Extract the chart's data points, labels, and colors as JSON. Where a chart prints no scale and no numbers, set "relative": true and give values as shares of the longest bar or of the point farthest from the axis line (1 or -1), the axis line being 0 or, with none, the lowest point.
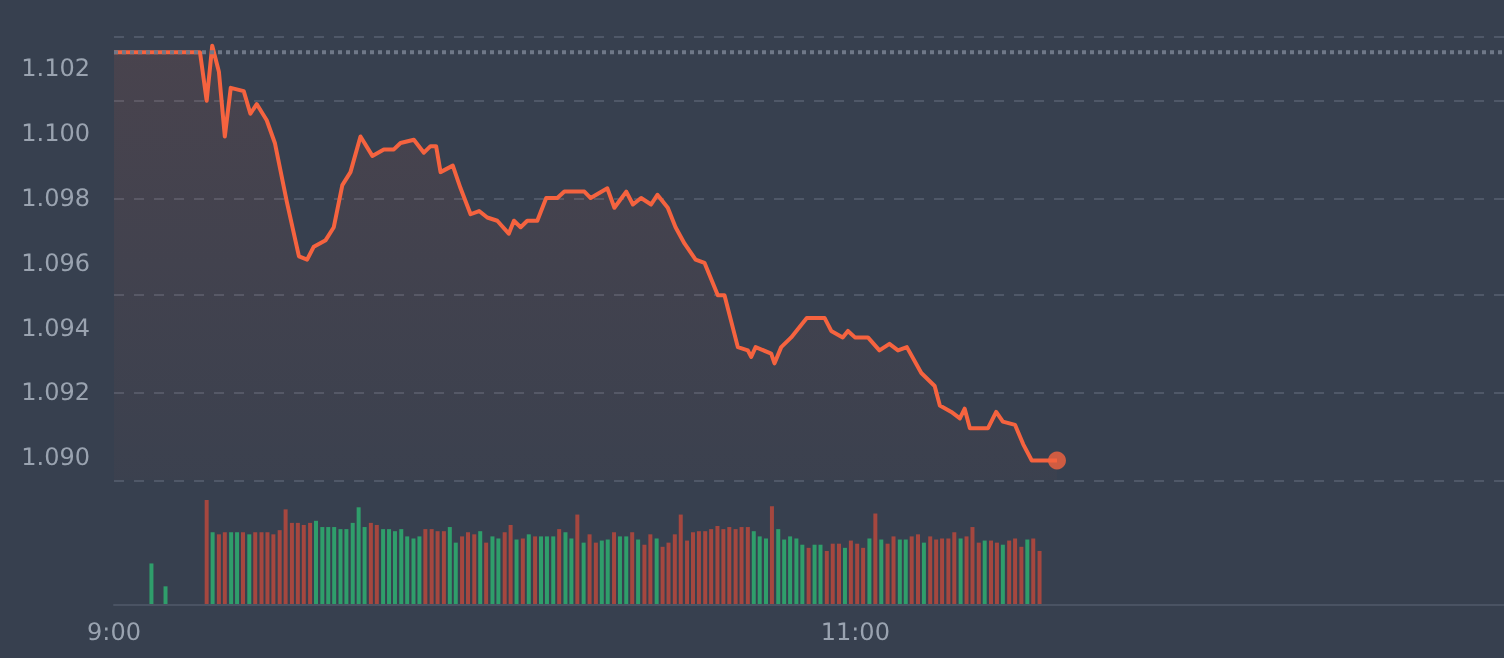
{
  "chart_data": [
    {
      "type": "area",
      "marker": "none",
      "grid": "y",
      "tick_labels": "y",
      "xlim": [
        9,
        12.75
      ],
      "ylim": [
        1.0893,
        1.103
      ],
      "yticks": [
        {
          "value": 1.09,
          "label": "1.090"
        },
        {
          "value": 1.092,
          "label": "1.092"
        },
        {
          "value": 1.094,
          "label": "1.094"
        },
        {
          "value": 1.096,
          "label": "1.096"
        },
        {
          "value": 1.098,
          "label": "1.098"
        },
        {
          "value": 1.1,
          "label": "1.100"
        },
        {
          "value": 1.102,
          "label": "1.102"
        }
      ],
      "ref_lines": [
        {
          "axis": "y",
          "value": 1.1025,
          "line_style": "dotted",
          "color": "#6f7888"
        }
      ],
      "series": [
        {
          "color": "#f5633f",
          "x": [
            9.0,
            9.232,
            9.25,
            9.265,
            9.283,
            9.299,
            9.315,
            9.35,
            9.368,
            9.385,
            9.412,
            9.434,
            9.466,
            9.499,
            9.521,
            9.539,
            9.571,
            9.593,
            9.616,
            9.638,
            9.665,
            9.697,
            9.728,
            9.755,
            9.773,
            9.809,
            9.836,
            9.854,
            9.869,
            9.881,
            9.914,
            9.935,
            9.962,
            9.985,
            10.007,
            10.034,
            10.065,
            10.079,
            10.097,
            10.115,
            10.142,
            10.166,
            10.196,
            10.215,
            10.269,
            10.286,
            10.331,
            10.35,
            10.382,
            10.4,
            10.422,
            10.449,
            10.466,
            10.494,
            10.515,
            10.539,
            10.569,
            10.593,
            10.629,
            10.647,
            10.683,
            10.71,
            10.719,
            10.731,
            10.773,
            10.782,
            10.8,
            10.827,
            10.869,
            10.917,
            10.935,
            10.966,
            10.98,
            10.999,
            11.034,
            11.065,
            11.092,
            11.115,
            11.139,
            11.178,
            11.214,
            11.228,
            11.259,
            11.282,
            11.295,
            11.309,
            11.358,
            11.38,
            11.398,
            11.431,
            11.453,
            11.476,
            11.544
          ],
          "values": [
            1.1025,
            1.1025,
            1.101,
            1.1027,
            1.1019,
            1.0999,
            1.1014,
            1.1013,
            1.1006,
            1.1009,
            1.1004,
            1.0997,
            1.0979,
            1.0962,
            1.0961,
            1.0965,
            1.0967,
            1.0971,
            1.0984,
            1.0988,
            1.0999,
            1.0993,
            1.0995,
            1.0995,
            1.0997,
            1.0998,
            1.0994,
            1.0996,
            1.0996,
            1.0988,
            1.099,
            1.0983,
            1.0975,
            1.0976,
            1.0974,
            1.0973,
            1.0969,
            1.0973,
            1.0971,
            1.0973,
            1.0973,
            1.098,
            1.098,
            1.0982,
            1.0982,
            1.098,
            1.0983,
            1.0977,
            1.0982,
            1.0978,
            1.098,
            1.0978,
            1.0981,
            1.0977,
            1.0971,
            1.0966,
            1.0961,
            1.096,
            1.095,
            1.095,
            1.0934,
            1.0933,
            1.0931,
            1.0934,
            1.0932,
            1.0929,
            1.0934,
            1.0937,
            1.0943,
            1.0943,
            1.0939,
            1.0937,
            1.0939,
            1.0937,
            1.0937,
            1.0933,
            1.0935,
            1.0933,
            1.0934,
            1.0926,
            1.0922,
            1.0916,
            1.0914,
            1.0912,
            1.0915,
            1.0909,
            1.0909,
            1.0914,
            1.0911,
            1.091,
            1.0904,
            1.0899,
            1.0899
          ]
        },
        {
          "type": "scatter",
          "color": "#f5633f",
          "marker": "circle",
          "x": [
            11.544
          ],
          "values": [
            1.0899
          ]
        }
      ]
    },
    {
      "type": "bar",
      "relative": true,
      "tick_labels": "x",
      "xlim": [
        9,
        12.75
      ],
      "xticks": [
        {
          "value": 9,
          "label": "9:00"
        },
        {
          "value": 11,
          "label": "11:00"
        }
      ],
      "x": [
        9.101,
        9.139,
        9.25,
        9.266,
        9.283,
        9.299,
        9.316,
        9.332,
        9.348,
        9.365,
        9.381,
        9.398,
        9.414,
        9.43,
        9.447,
        9.463,
        9.48,
        9.496,
        9.512,
        9.529,
        9.545,
        9.562,
        9.578,
        9.594,
        9.611,
        9.627,
        9.644,
        9.66,
        9.676,
        9.693,
        9.709,
        9.726,
        9.742,
        9.758,
        9.775,
        9.791,
        9.808,
        9.824,
        9.84,
        9.857,
        9.873,
        9.89,
        9.906,
        9.922,
        9.939,
        9.955,
        9.972,
        9.988,
        10.004,
        10.021,
        10.037,
        10.054,
        10.07,
        10.086,
        10.103,
        10.119,
        10.136,
        10.152,
        10.168,
        10.185,
        10.201,
        10.218,
        10.234,
        10.25,
        10.267,
        10.283,
        10.3,
        10.316,
        10.332,
        10.349,
        10.365,
        10.382,
        10.398,
        10.414,
        10.431,
        10.447,
        10.464,
        10.48,
        10.496,
        10.513,
        10.529,
        10.546,
        10.562,
        10.578,
        10.595,
        10.611,
        10.628,
        10.644,
        10.66,
        10.677,
        10.693,
        10.71,
        10.726,
        10.742,
        10.759,
        10.775,
        10.792,
        10.808,
        10.824,
        10.841,
        10.857,
        10.874,
        10.89,
        10.906,
        10.923,
        10.939,
        10.956,
        10.972,
        10.988,
        11.005,
        11.021,
        11.038,
        11.054,
        11.07,
        11.087,
        11.103,
        11.12,
        11.136,
        11.152,
        11.169,
        11.185,
        11.202,
        11.218,
        11.234,
        11.251,
        11.267,
        11.284,
        11.3,
        11.316,
        11.333,
        11.349,
        11.366,
        11.382,
        11.398,
        11.415,
        11.431,
        11.448,
        11.464,
        11.48,
        11.497
      ],
      "values": [
        0.39,
        0.17,
        1.0,
        0.69,
        0.67,
        0.69,
        0.69,
        0.69,
        0.69,
        0.67,
        0.69,
        0.69,
        0.69,
        0.67,
        0.71,
        0.91,
        0.78,
        0.78,
        0.76,
        0.78,
        0.8,
        0.74,
        0.74,
        0.74,
        0.72,
        0.72,
        0.78,
        0.93,
        0.74,
        0.78,
        0.76,
        0.72,
        0.72,
        0.7,
        0.72,
        0.65,
        0.63,
        0.65,
        0.72,
        0.72,
        0.7,
        0.7,
        0.74,
        0.59,
        0.65,
        0.69,
        0.67,
        0.7,
        0.59,
        0.65,
        0.63,
        0.69,
        0.76,
        0.62,
        0.63,
        0.67,
        0.65,
        0.65,
        0.65,
        0.65,
        0.72,
        0.69,
        0.63,
        0.86,
        0.59,
        0.67,
        0.59,
        0.61,
        0.62,
        0.69,
        0.65,
        0.65,
        0.69,
        0.62,
        0.57,
        0.67,
        0.63,
        0.55,
        0.59,
        0.67,
        0.86,
        0.61,
        0.69,
        0.7,
        0.7,
        0.72,
        0.75,
        0.72,
        0.74,
        0.72,
        0.74,
        0.74,
        0.7,
        0.65,
        0.63,
        0.94,
        0.72,
        0.62,
        0.65,
        0.63,
        0.57,
        0.54,
        0.57,
        0.57,
        0.51,
        0.58,
        0.58,
        0.54,
        0.61,
        0.58,
        0.54,
        0.63,
        0.87,
        0.62,
        0.58,
        0.65,
        0.62,
        0.62,
        0.65,
        0.67,
        0.59,
        0.65,
        0.62,
        0.63,
        0.63,
        0.69,
        0.63,
        0.65,
        0.74,
        0.59,
        0.61,
        0.61,
        0.59,
        0.57,
        0.61,
        0.63,
        0.55,
        0.62,
        0.63,
        0.51
      ],
      "colors": [
        "#2f9e6b",
        "#2f9e6b",
        "#a5473f",
        "#2f9e6b",
        "#a5473f",
        "#a5473f",
        "#2f9e6b",
        "#2f9e6b",
        "#a5473f",
        "#2f9e6b",
        "#a5473f",
        "#a5473f",
        "#a5473f",
        "#a5473f",
        "#a5473f",
        "#a5473f",
        "#a5473f",
        "#a5473f",
        "#a5473f",
        "#a5473f",
        "#2f9e6b",
        "#2f9e6b",
        "#2f9e6b",
        "#2f9e6b",
        "#2f9e6b",
        "#2f9e6b",
        "#2f9e6b",
        "#2f9e6b",
        "#2f9e6b",
        "#a5473f",
        "#a5473f",
        "#2f9e6b",
        "#2f9e6b",
        "#2f9e6b",
        "#2f9e6b",
        "#2f9e6b",
        "#2f9e6b",
        "#2f9e6b",
        "#a5473f",
        "#a5473f",
        "#a5473f",
        "#a5473f",
        "#2f9e6b",
        "#2f9e6b",
        "#a5473f",
        "#a5473f",
        "#a5473f",
        "#2f9e6b",
        "#a5473f",
        "#2f9e6b",
        "#2f9e6b",
        "#a5473f",
        "#a5473f",
        "#2f9e6b",
        "#a5473f",
        "#2f9e6b",
        "#a5473f",
        "#2f9e6b",
        "#2f9e6b",
        "#2f9e6b",
        "#a5473f",
        "#2f9e6b",
        "#2f9e6b",
        "#a5473f",
        "#2f9e6b",
        "#a5473f",
        "#a5473f",
        "#2f9e6b",
        "#2f9e6b",
        "#a5473f",
        "#2f9e6b",
        "#2f9e6b",
        "#a5473f",
        "#2f9e6b",
        "#a5473f",
        "#a5473f",
        "#2f9e6b",
        "#a5473f",
        "#a5473f",
        "#a5473f",
        "#a5473f",
        "#a5473f",
        "#a5473f",
        "#a5473f",
        "#a5473f",
        "#a5473f",
        "#a5473f",
        "#a5473f",
        "#a5473f",
        "#a5473f",
        "#a5473f",
        "#a5473f",
        "#2f9e6b",
        "#2f9e6b",
        "#2f9e6b",
        "#a5473f",
        "#2f9e6b",
        "#2f9e6b",
        "#2f9e6b",
        "#2f9e6b",
        "#2f9e6b",
        "#a5473f",
        "#2f9e6b",
        "#2f9e6b",
        "#a5473f",
        "#a5473f",
        "#a5473f",
        "#2f9e6b",
        "#a5473f",
        "#a5473f",
        "#a5473f",
        "#2f9e6b",
        "#a5473f",
        "#2f9e6b",
        "#a5473f",
        "#a5473f",
        "#2f9e6b",
        "#2f9e6b",
        "#a5473f",
        "#a5473f",
        "#2f9e6b",
        "#a5473f",
        "#a5473f",
        "#a5473f",
        "#a5473f",
        "#a5473f",
        "#2f9e6b",
        "#a5473f",
        "#a5473f",
        "#a5473f",
        "#2f9e6b",
        "#a5473f",
        "#a5473f",
        "#2f9e6b",
        "#a5473f",
        "#a5473f",
        "#a5473f",
        "#2f9e6b",
        "#a5473f",
        "#a5473f"
      ]
    }
  ]
}
